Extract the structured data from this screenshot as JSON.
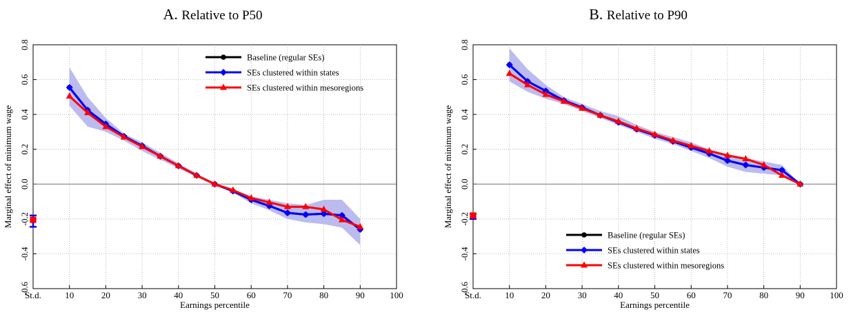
{
  "chart_data": [
    {
      "type": "line",
      "title_prefix": "A.",
      "title": "Relative to P50",
      "xlabel": "Earnings percentile",
      "ylabel": "Marginal effect of minimum wage",
      "xlim": [
        0,
        100
      ],
      "ylim": [
        -0.6,
        0.8
      ],
      "xticks": [
        "St.d.",
        "10",
        "20",
        "30",
        "40",
        "50",
        "60",
        "70",
        "80",
        "90",
        "100"
      ],
      "yticks": [
        "-0.6",
        "-0.4",
        "-0.2",
        "0.0",
        "0.2",
        "0.4",
        "0.6",
        "0.8"
      ],
      "grid": true,
      "legend_position": "top-right",
      "x": [
        10,
        15,
        20,
        25,
        30,
        35,
        40,
        45,
        50,
        55,
        60,
        65,
        70,
        75,
        80,
        85,
        90
      ],
      "series": [
        {
          "name": "Baseline (regular SEs)",
          "color": "#000000",
          "marker": "circle",
          "values": [
            0.555,
            0.425,
            0.345,
            0.275,
            0.22,
            0.16,
            0.105,
            0.05,
            0.0,
            -0.04,
            -0.09,
            -0.125,
            -0.165,
            -0.175,
            -0.17,
            -0.18,
            -0.26
          ],
          "std_value": -0.21
        },
        {
          "name": "SEs clustered within states",
          "color": "#0000ff",
          "marker": "diamond",
          "values": [
            0.555,
            0.425,
            0.345,
            0.275,
            0.22,
            0.16,
            0.105,
            0.05,
            0.0,
            -0.04,
            -0.09,
            -0.125,
            -0.165,
            -0.175,
            -0.17,
            -0.18,
            -0.26
          ],
          "std_value": -0.21,
          "std_ci": [
            -0.245,
            -0.18
          ],
          "ci_lower": [
            0.45,
            0.33,
            0.3,
            0.25,
            0.19,
            0.14,
            0.09,
            0.04,
            0.0,
            -0.05,
            -0.11,
            -0.15,
            -0.2,
            -0.22,
            -0.23,
            -0.25,
            -0.35
          ],
          "ci_upper": [
            0.67,
            0.5,
            0.38,
            0.29,
            0.24,
            0.18,
            0.12,
            0.06,
            0.0,
            -0.03,
            -0.07,
            -0.09,
            -0.11,
            -0.12,
            -0.09,
            -0.09,
            -0.2
          ]
        },
        {
          "name": "SEs clustered within mesoregions",
          "color": "#ff0000",
          "marker": "triangle",
          "values": [
            0.505,
            0.41,
            0.33,
            0.27,
            0.215,
            0.16,
            0.105,
            0.05,
            0.0,
            -0.035,
            -0.08,
            -0.105,
            -0.13,
            -0.13,
            -0.145,
            -0.205,
            -0.245
          ],
          "std_value": -0.205
        }
      ],
      "band_color": "#b7b7ee"
    },
    {
      "type": "line",
      "title_prefix": "B.",
      "title": "Relative to P90",
      "xlabel": "Earnings percentile",
      "ylabel": "Marginal effect of minimum wage",
      "xlim": [
        0,
        100
      ],
      "ylim": [
        -0.6,
        0.8
      ],
      "xticks": [
        "St.d.",
        "10",
        "20",
        "30",
        "40",
        "50",
        "60",
        "70",
        "80",
        "90",
        "100"
      ],
      "yticks": [
        "-0.6",
        "-0.4",
        "-0.2",
        "0.0",
        "0.2",
        "0.4",
        "0.6",
        "0.8"
      ],
      "grid": true,
      "legend_position": "bottom-center",
      "x": [
        10,
        15,
        20,
        25,
        30,
        35,
        40,
        45,
        50,
        55,
        60,
        65,
        70,
        75,
        80,
        85,
        90
      ],
      "series": [
        {
          "name": "Baseline (regular SEs)",
          "color": "#000000",
          "marker": "circle",
          "values": [
            0.685,
            0.59,
            0.535,
            0.48,
            0.44,
            0.395,
            0.355,
            0.315,
            0.28,
            0.245,
            0.21,
            0.175,
            0.135,
            0.11,
            0.095,
            0.08,
            0.0
          ],
          "std_value": -0.185
        },
        {
          "name": "SEs clustered within states",
          "color": "#0000ff",
          "marker": "diamond",
          "values": [
            0.685,
            0.59,
            0.535,
            0.48,
            0.44,
            0.395,
            0.355,
            0.315,
            0.28,
            0.245,
            0.21,
            0.175,
            0.135,
            0.11,
            0.095,
            0.08,
            0.0
          ],
          "std_value": -0.185,
          "std_ci": [
            -0.2,
            -0.17
          ],
          "ci_lower": [
            0.59,
            0.53,
            0.49,
            0.46,
            0.42,
            0.38,
            0.34,
            0.3,
            0.26,
            0.23,
            0.19,
            0.15,
            0.1,
            0.07,
            0.06,
            0.05,
            0.0
          ],
          "ci_upper": [
            0.78,
            0.66,
            0.57,
            0.5,
            0.46,
            0.42,
            0.39,
            0.34,
            0.3,
            0.27,
            0.24,
            0.2,
            0.17,
            0.15,
            0.13,
            0.11,
            0.0
          ]
        },
        {
          "name": "SEs clustered within mesoregions",
          "color": "#ff0000",
          "marker": "triangle",
          "values": [
            0.635,
            0.57,
            0.515,
            0.475,
            0.435,
            0.395,
            0.36,
            0.32,
            0.285,
            0.25,
            0.22,
            0.19,
            0.165,
            0.145,
            0.11,
            0.05,
            0.0
          ],
          "std_value": -0.18
        }
      ],
      "band_color": "#b7b7ee"
    }
  ]
}
